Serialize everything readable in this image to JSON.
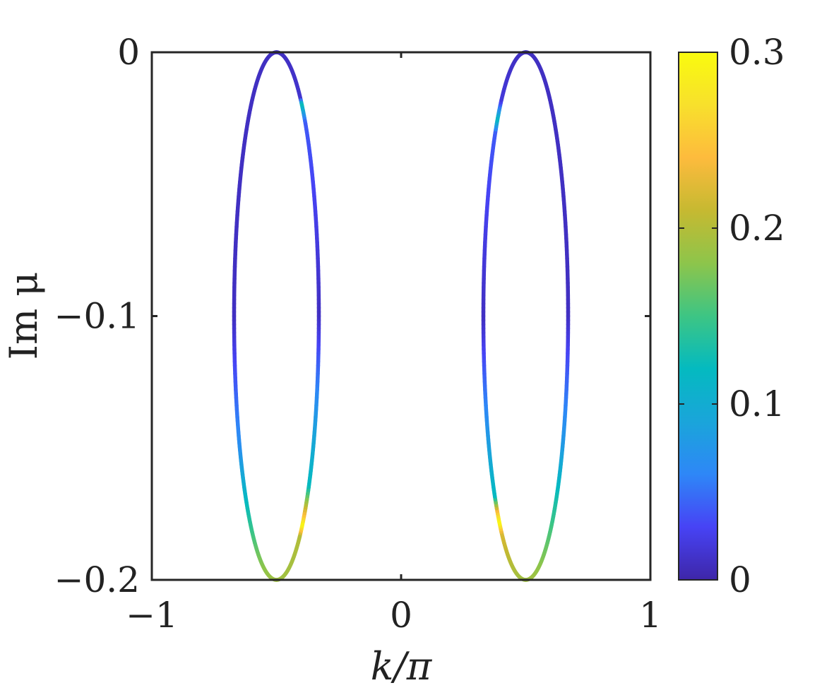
{
  "chart_data": {
    "type": "scatter",
    "title": "",
    "xlabel": "k/π",
    "ylabel": "Im μ",
    "xlim": [
      -1,
      1
    ],
    "ylim": [
      -0.2,
      0
    ],
    "xticks": [
      -1,
      0,
      1
    ],
    "xtick_labels": [
      "−1",
      "0",
      "1"
    ],
    "yticks": [
      0,
      -0.1,
      -0.2
    ],
    "ytick_labels": [
      "0",
      "−0.1",
      "−0.2"
    ],
    "grid": false,
    "colormap": "parula",
    "colorbar": {
      "clim": [
        0,
        0.3
      ],
      "ticks": [
        0,
        0.1,
        0.2,
        0.3
      ],
      "tick_labels": [
        "0",
        "0.1",
        "0.2",
        "0.3"
      ],
      "colors": [
        "#3e26a8",
        "#4743f5",
        "#2e87f7",
        "#1aa5da",
        "#04bac0",
        "#3dc584",
        "#8dc54b",
        "#c6b931",
        "#fdbb3d",
        "#f8e02c",
        "#f9fb0e"
      ]
    },
    "series": [
      {
        "center_x": -0.5,
        "x_halfwidth": 0.17,
        "y_top": 0,
        "y_bottom": -0.2,
        "color_points": [
          {
            "side": "right",
            "y": 0,
            "c": 0.01
          },
          {
            "side": "right",
            "y": -0.018,
            "c": 0.015
          },
          {
            "side": "right",
            "y": -0.02,
            "c": 0.13
          },
          {
            "side": "right",
            "y": -0.027,
            "c": 0.04
          },
          {
            "side": "right",
            "y": -0.1,
            "c": 0.01
          },
          {
            "side": "right",
            "y": -0.14,
            "c": 0.08
          },
          {
            "side": "right",
            "y": -0.165,
            "c": 0.12
          },
          {
            "side": "right",
            "y": -0.176,
            "c": 0.24
          },
          {
            "side": "right",
            "y": -0.18,
            "c": 0.3
          },
          {
            "side": "right",
            "y": -0.184,
            "c": 0.2
          },
          {
            "side": "right",
            "y": -0.2,
            "c": 0.19
          },
          {
            "side": "left",
            "y": 0,
            "c": 0.01
          },
          {
            "side": "left",
            "y": -0.1,
            "c": 0.01
          },
          {
            "side": "left",
            "y": -0.15,
            "c": 0.07
          },
          {
            "side": "left",
            "y": -0.17,
            "c": 0.12
          },
          {
            "side": "left",
            "y": -0.19,
            "c": 0.17
          },
          {
            "side": "left",
            "y": -0.2,
            "c": 0.19
          }
        ]
      },
      {
        "center_x": 0.5,
        "x_halfwidth": 0.17,
        "y_top": 0,
        "y_bottom": -0.2,
        "color_points": [
          {
            "side": "left",
            "y": 0,
            "c": 0.01
          },
          {
            "side": "left",
            "y": -0.018,
            "c": 0.02
          },
          {
            "side": "left",
            "y": -0.025,
            "c": 0.12
          },
          {
            "side": "left",
            "y": -0.03,
            "c": 0.04
          },
          {
            "side": "left",
            "y": -0.1,
            "c": 0.01
          },
          {
            "side": "left",
            "y": -0.14,
            "c": 0.07
          },
          {
            "side": "left",
            "y": -0.168,
            "c": 0.12
          },
          {
            "side": "left",
            "y": -0.174,
            "c": 0.25
          },
          {
            "side": "left",
            "y": -0.178,
            "c": 0.3
          },
          {
            "side": "left",
            "y": -0.182,
            "c": 0.22
          },
          {
            "side": "left",
            "y": -0.2,
            "c": 0.19
          },
          {
            "side": "right",
            "y": 0,
            "c": 0.01
          },
          {
            "side": "right",
            "y": -0.1,
            "c": 0.01
          },
          {
            "side": "right",
            "y": -0.15,
            "c": 0.08
          },
          {
            "side": "right",
            "y": -0.17,
            "c": 0.13
          },
          {
            "side": "right",
            "y": -0.19,
            "c": 0.17
          },
          {
            "side": "right",
            "y": -0.2,
            "c": 0.19
          }
        ]
      }
    ]
  }
}
